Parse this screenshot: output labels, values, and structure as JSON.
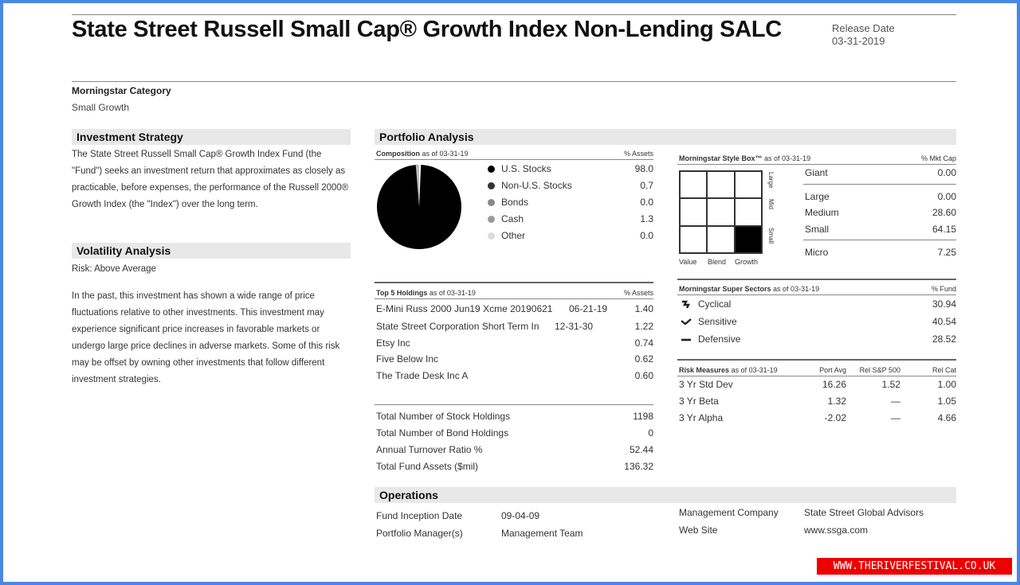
{
  "header": {
    "title": "State Street Russell Small Cap® Growth Index Non-Lending SALC",
    "release_label": "Release Date",
    "release_date": "03-31-2019"
  },
  "category": {
    "label": "Morningstar Category",
    "value": "Small Growth"
  },
  "investment_strategy": {
    "heading": "Investment Strategy",
    "text": "The State Street Russell Small Cap® Growth Index Fund (the \"Fund\") seeks an investment return that approximates as closely as practicable, before expenses, the performance of the Russell 2000® Growth Index (the \"Index\") over the long term."
  },
  "volatility": {
    "heading": "Volatility Analysis",
    "risk": "Risk: Above Average",
    "text": "In the past, this investment has shown a wide range of price fluctuations relative to other investments. This investment may experience significant price increases in favorable markets or undergo large price declines in adverse markets. Some of this risk may be offset by owning other investments that follow different investment strategies."
  },
  "portfolio": {
    "heading": "Portfolio Analysis",
    "composition_label": "Composition",
    "composition_asof": "as of 03-31-19",
    "composition_col": "% Assets",
    "composition": [
      {
        "name": "U.S. Stocks",
        "value": "98.0",
        "color": "#000000"
      },
      {
        "name": "Non-U.S. Stocks",
        "value": "0.7",
        "color": "#333333"
      },
      {
        "name": "Bonds",
        "value": "0.0",
        "color": "#888888"
      },
      {
        "name": "Cash",
        "value": "1.3",
        "color": "#999999"
      },
      {
        "name": "Other",
        "value": "0.0",
        "color": "#dddddd"
      }
    ],
    "top_holdings_label": "Top 5 Holdings",
    "top_holdings_asof": "as of 03-31-19",
    "top_holdings_col": "% Assets",
    "top_holdings": [
      {
        "name": "E-Mini Russ 2000 Jun19 Xcme 20190621",
        "date": "06-21-19",
        "value": "1.40"
      },
      {
        "name": "State Street Corporation Short Term In",
        "date": "12-31-30",
        "value": "1.22"
      },
      {
        "name": "Etsy Inc",
        "date": "",
        "value": "0.74"
      },
      {
        "name": "Five Below Inc",
        "date": "",
        "value": "0.62"
      },
      {
        "name": "The Trade Desk Inc A",
        "date": "",
        "value": "0.60"
      }
    ],
    "totals": [
      {
        "label": "Total Number of Stock Holdings",
        "value": "1198"
      },
      {
        "label": "Total Number of Bond Holdings",
        "value": "0"
      },
      {
        "label": "Annual Turnover Ratio %",
        "value": "52.44"
      },
      {
        "label": "Total Fund Assets ($mil)",
        "value": "136.32"
      }
    ],
    "style_box": {
      "label": "Morningstar Style Box™",
      "asof": "as of 03-31-19",
      "col": "% Mkt Cap",
      "x_labels": [
        "Value",
        "Blend",
        "Growth"
      ],
      "y_labels": [
        "Large",
        "Mid",
        "Small"
      ],
      "filled_cell": "small-growth",
      "caps": [
        {
          "name": "Giant",
          "value": "0.00"
        },
        {
          "name": "Large",
          "value": "0.00"
        },
        {
          "name": "Medium",
          "value": "28.60"
        },
        {
          "name": "Small",
          "value": "64.15"
        },
        {
          "name": "Micro",
          "value": "7.25"
        }
      ]
    },
    "super_sectors": {
      "label": "Morningstar Super Sectors",
      "asof": "as of 03-31-19",
      "col": "% Fund",
      "items": [
        {
          "name": "Cyclical",
          "value": "30.94",
          "icon": "cyclical-icon"
        },
        {
          "name": "Sensitive",
          "value": "40.54",
          "icon": "sensitive-icon"
        },
        {
          "name": "Defensive",
          "value": "28.52",
          "icon": "defensive-icon"
        }
      ]
    },
    "risk_measures": {
      "label": "Risk Measures",
      "asof": "as of 03-31-19",
      "cols": [
        "Port Avg",
        "Rel S&P 500",
        "Rel Cat"
      ],
      "rows": [
        {
          "name": "3 Yr Std Dev",
          "port": "16.26",
          "rel_sp": "1.52",
          "rel_cat": "1.00"
        },
        {
          "name": "3 Yr Beta",
          "port": "1.32",
          "rel_sp": "—",
          "rel_cat": "1.05"
        },
        {
          "name": "3 Yr Alpha",
          "port": "-2.02",
          "rel_sp": "—",
          "rel_cat": "4.66"
        }
      ]
    }
  },
  "operations": {
    "heading": "Operations",
    "left": [
      {
        "label": "Fund Inception Date",
        "value": "09-04-09"
      },
      {
        "label": "Portfolio Manager(s)",
        "value": "Management Team"
      }
    ],
    "right": [
      {
        "label": "Management Company",
        "value": "State Street Global Advisors"
      },
      {
        "label": "Web Site",
        "value": "www.ssga.com"
      }
    ]
  },
  "watermark": "WWW.THERIVERFESTIVAL.CO.UK"
}
